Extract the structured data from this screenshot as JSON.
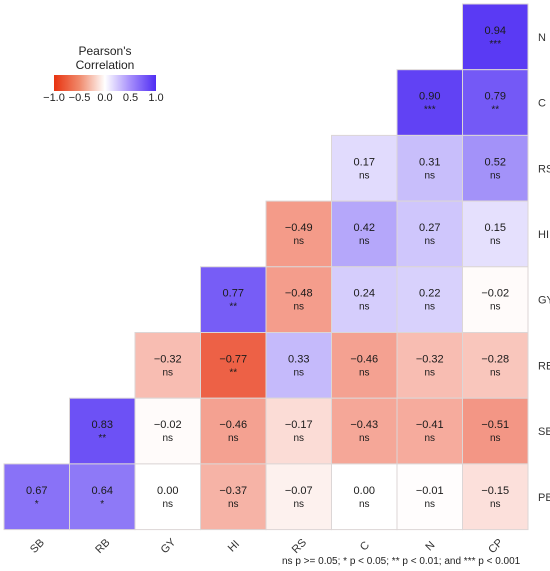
{
  "chart_data": {
    "type": "heatmap",
    "legend": {
      "title_line1": "Pearson's",
      "title_line2": "Correlation",
      "ticks": [
        "−1.0",
        "−0.5",
        "0.0",
        "0.5",
        "1.0"
      ],
      "tick_values": [
        -1.0,
        -0.5,
        0.0,
        0.5,
        1.0
      ],
      "colors": {
        "negative": "#e8320f",
        "zero": "#ffffff",
        "positive": "#4f2df3"
      }
    },
    "x_labels": [
      "SB",
      "RB",
      "GY",
      "HI",
      "RS",
      "C",
      "N",
      "CP"
    ],
    "y_labels": [
      "N",
      "C",
      "RS",
      "HI",
      "GY",
      "RB",
      "SB",
      "PB"
    ],
    "cells": [
      {
        "row": "N",
        "col": "CP",
        "value": 0.94,
        "text": "0.94",
        "sig": "***"
      },
      {
        "row": "C",
        "col": "N",
        "value": 0.9,
        "text": "0.90",
        "sig": "***"
      },
      {
        "row": "C",
        "col": "CP",
        "value": 0.79,
        "text": "0.79",
        "sig": "**"
      },
      {
        "row": "RS",
        "col": "C",
        "value": 0.17,
        "text": "0.17",
        "sig": "ns"
      },
      {
        "row": "RS",
        "col": "N",
        "value": 0.31,
        "text": "0.31",
        "sig": "ns"
      },
      {
        "row": "RS",
        "col": "CP",
        "value": 0.52,
        "text": "0.52",
        "sig": "ns"
      },
      {
        "row": "HI",
        "col": "RS",
        "value": -0.49,
        "text": "−0.49",
        "sig": "ns"
      },
      {
        "row": "HI",
        "col": "C",
        "value": 0.42,
        "text": "0.42",
        "sig": "ns"
      },
      {
        "row": "HI",
        "col": "N",
        "value": 0.27,
        "text": "0.27",
        "sig": "ns"
      },
      {
        "row": "HI",
        "col": "CP",
        "value": 0.15,
        "text": "0.15",
        "sig": "ns"
      },
      {
        "row": "GY",
        "col": "HI",
        "value": 0.77,
        "text": "0.77",
        "sig": "**"
      },
      {
        "row": "GY",
        "col": "RS",
        "value": -0.48,
        "text": "−0.48",
        "sig": "ns"
      },
      {
        "row": "GY",
        "col": "C",
        "value": 0.24,
        "text": "0.24",
        "sig": "ns"
      },
      {
        "row": "GY",
        "col": "N",
        "value": 0.22,
        "text": "0.22",
        "sig": "ns"
      },
      {
        "row": "GY",
        "col": "CP",
        "value": -0.02,
        "text": "−0.02",
        "sig": "ns"
      },
      {
        "row": "RB",
        "col": "GY",
        "value": -0.32,
        "text": "−0.32",
        "sig": "ns"
      },
      {
        "row": "RB",
        "col": "HI",
        "value": -0.77,
        "text": "−0.77",
        "sig": "**"
      },
      {
        "row": "RB",
        "col": "RS",
        "value": 0.33,
        "text": "0.33",
        "sig": "ns"
      },
      {
        "row": "RB",
        "col": "C",
        "value": -0.46,
        "text": "−0.46",
        "sig": "ns"
      },
      {
        "row": "RB",
        "col": "N",
        "value": -0.32,
        "text": "−0.32",
        "sig": "ns"
      },
      {
        "row": "RB",
        "col": "CP",
        "value": -0.28,
        "text": "−0.28",
        "sig": "ns"
      },
      {
        "row": "SB",
        "col": "RB",
        "value": 0.83,
        "text": "0.83",
        "sig": "**"
      },
      {
        "row": "SB",
        "col": "GY",
        "value": -0.02,
        "text": "−0.02",
        "sig": "ns"
      },
      {
        "row": "SB",
        "col": "HI",
        "value": -0.46,
        "text": "−0.46",
        "sig": "ns"
      },
      {
        "row": "SB",
        "col": "RS",
        "value": -0.17,
        "text": "−0.17",
        "sig": "ns"
      },
      {
        "row": "SB",
        "col": "C",
        "value": -0.43,
        "text": "−0.43",
        "sig": "ns"
      },
      {
        "row": "SB",
        "col": "N",
        "value": -0.41,
        "text": "−0.41",
        "sig": "ns"
      },
      {
        "row": "SB",
        "col": "CP",
        "value": -0.51,
        "text": "−0.51",
        "sig": "ns"
      },
      {
        "row": "PB",
        "col": "SB",
        "value": 0.67,
        "text": "0.67",
        "sig": "*"
      },
      {
        "row": "PB",
        "col": "RB",
        "value": 0.64,
        "text": "0.64",
        "sig": "*"
      },
      {
        "row": "PB",
        "col": "GY",
        "value": 0.0,
        "text": "0.00",
        "sig": "ns"
      },
      {
        "row": "PB",
        "col": "HI",
        "value": -0.37,
        "text": "−0.37",
        "sig": "ns"
      },
      {
        "row": "PB",
        "col": "RS",
        "value": -0.07,
        "text": "−0.07",
        "sig": "ns"
      },
      {
        "row": "PB",
        "col": "C",
        "value": 0.0,
        "text": "0.00",
        "sig": "ns"
      },
      {
        "row": "PB",
        "col": "N",
        "value": -0.01,
        "text": "−0.01",
        "sig": "ns"
      },
      {
        "row": "PB",
        "col": "CP",
        "value": -0.15,
        "text": "−0.15",
        "sig": "ns"
      }
    ],
    "footnote": "ns p >= 0.05; * p < 0.05; ** p < 0.01; and *** p < 0.001"
  }
}
